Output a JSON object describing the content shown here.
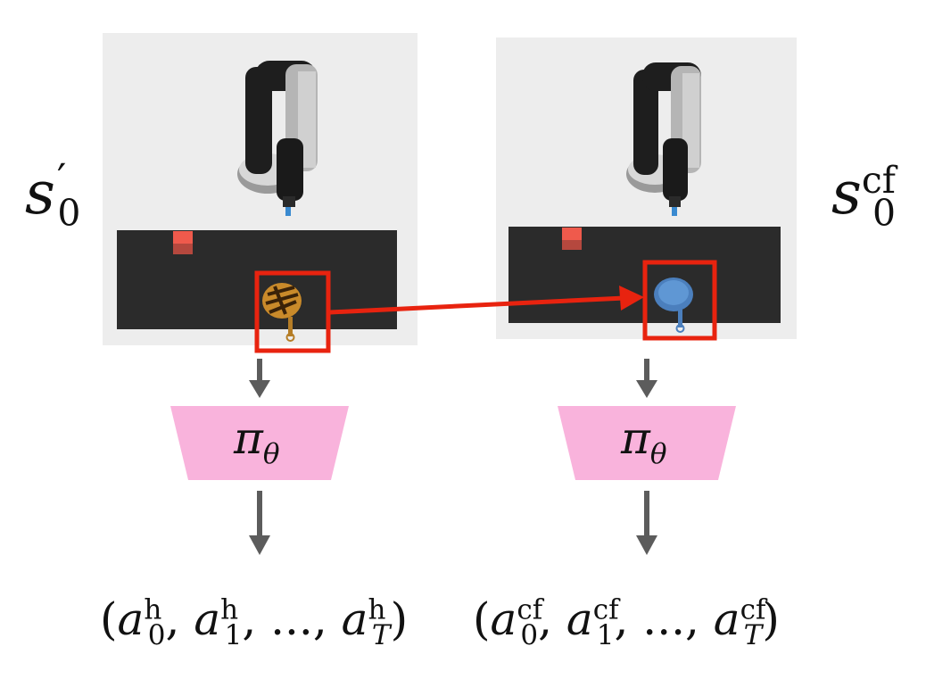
{
  "left": {
    "state": {
      "base": "s",
      "prime": "′",
      "sub": "0"
    },
    "policy": {
      "pi": "π",
      "theta": "θ"
    },
    "actions": {
      "open": "(",
      "a0": "a",
      "a0sub": "0",
      "a0sup": "h",
      "a1": "a",
      "a1sub": "1",
      "a1sup": "h",
      "dots": "...",
      "aT": "a",
      "aTsub": "T",
      "aTsup": "h",
      "close": ")"
    }
  },
  "right": {
    "state": {
      "base": "s",
      "sub": "0",
      "sup": "cf"
    },
    "policy": {
      "pi": "π",
      "theta": "θ"
    },
    "actions": {
      "open": "(",
      "a0": "a",
      "a0sub": "0",
      "a0sup": "cf",
      "a1": "a",
      "a1sub": "1",
      "a1sup": "cf",
      "dots": "...",
      "aT": "a",
      "aTsub": "T",
      "aTsup": "cf",
      "close": ")"
    }
  },
  "colors": {
    "scene_bg": "#ededed",
    "table": "#2b2b2b",
    "highlight": "#e8230f",
    "policy_fill": "#f9b3dc",
    "arrow": "#5c5c5c",
    "cube": "#ef5a4c",
    "pan_original": "#c98a2a",
    "pan_counterfactual": "#4b7fbd"
  },
  "icons": [
    "robot-arm-icon",
    "cube-icon",
    "frying-pan-icon"
  ]
}
